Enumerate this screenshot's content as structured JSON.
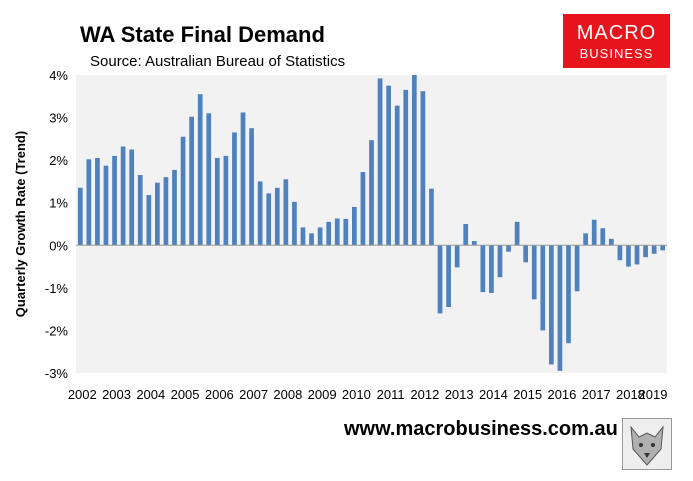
{
  "header": {
    "title": "WA State Final Demand",
    "subtitle": "Source: Australian Bureau of Statistics"
  },
  "logo": {
    "line1": "MACRO",
    "line2": "BUSINESS",
    "color": "#e8141b"
  },
  "footer": {
    "url": "www.macrobusiness.com.au"
  },
  "chart_data": {
    "type": "bar",
    "title": "WA State Final Demand",
    "ylabel": "Quarterly Growth Rate (Trend)",
    "xlabel": "",
    "ylim": [
      -3,
      4
    ],
    "yticks": [
      "-3%",
      "-2%",
      "-1%",
      "0%",
      "1%",
      "2%",
      "3%",
      "4%"
    ],
    "xtick_labels": [
      "2002",
      "2003",
      "2004",
      "2005",
      "2006",
      "2007",
      "2008",
      "2009",
      "2010",
      "2011",
      "2012",
      "2013",
      "2014",
      "2015",
      "2016",
      "2017",
      "2018",
      "2019"
    ],
    "grid": false,
    "bar_color": "#4f81bd",
    "plot_background": "#f2f2f2",
    "series": [
      {
        "values": [
          1.35,
          2.02,
          2.05,
          1.87,
          2.1,
          2.32,
          2.25,
          1.65,
          1.18,
          1.47,
          1.6,
          1.77,
          2.55,
          3.02,
          3.55,
          3.1,
          2.05,
          2.1,
          2.65,
          3.12,
          2.75,
          1.5,
          1.22,
          1.35,
          1.55,
          1.02,
          0.42,
          0.28,
          0.42,
          0.55,
          0.63,
          0.62,
          0.9,
          1.72,
          2.47,
          3.92,
          3.75,
          3.28,
          3.65,
          4.0,
          3.62,
          1.33,
          -1.6,
          -1.45,
          -0.52,
          0.5,
          0.1,
          -1.1,
          -1.12,
          -0.75,
          -0.15,
          0.55,
          -0.4,
          -1.27,
          -2.0,
          -2.8,
          -2.95,
          -2.3,
          -1.08,
          0.28,
          0.6,
          0.4,
          0.15,
          -0.35,
          -0.5,
          -0.45,
          -0.28,
          -0.2,
          -0.12
        ]
      }
    ]
  }
}
